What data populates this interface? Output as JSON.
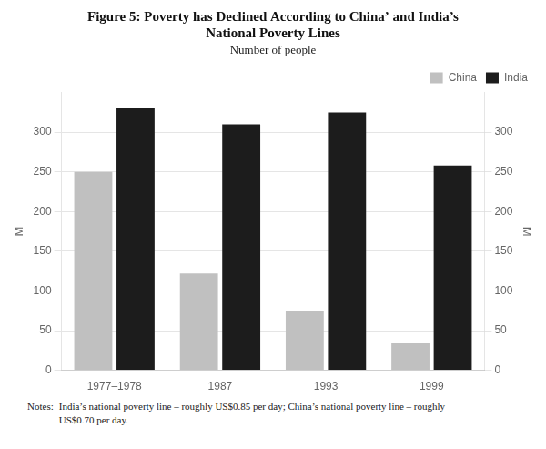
{
  "chart_data": {
    "type": "bar",
    "title": [
      "Figure 5: Poverty has Declined According to China’ and India’s",
      "National Poverty Lines"
    ],
    "subtitle": "Number of people",
    "categories": [
      "1977–1978",
      "1987",
      "1993",
      "1999"
    ],
    "series": [
      {
        "name": "China",
        "color": "#c0c0c0",
        "values": [
          250,
          122,
          75,
          34
        ]
      },
      {
        "name": "India",
        "color": "#1c1c1c",
        "values": [
          330,
          310,
          325,
          258
        ]
      }
    ],
    "y_label": "M",
    "y2_label": "M",
    "ylim": [
      0,
      350
    ],
    "yticks": [
      0,
      50,
      100,
      150,
      200,
      250,
      300
    ],
    "y2lim": [
      0,
      350
    ],
    "y2ticks": [
      0,
      50,
      100,
      150,
      200,
      250,
      300
    ],
    "grid": true,
    "legend": "upper right",
    "annotations": [
      "Notes:",
      "India’s national poverty line – roughly US$0.85 per day; China’s national poverty line – roughly\nUS$0.70 per day."
    ]
  }
}
